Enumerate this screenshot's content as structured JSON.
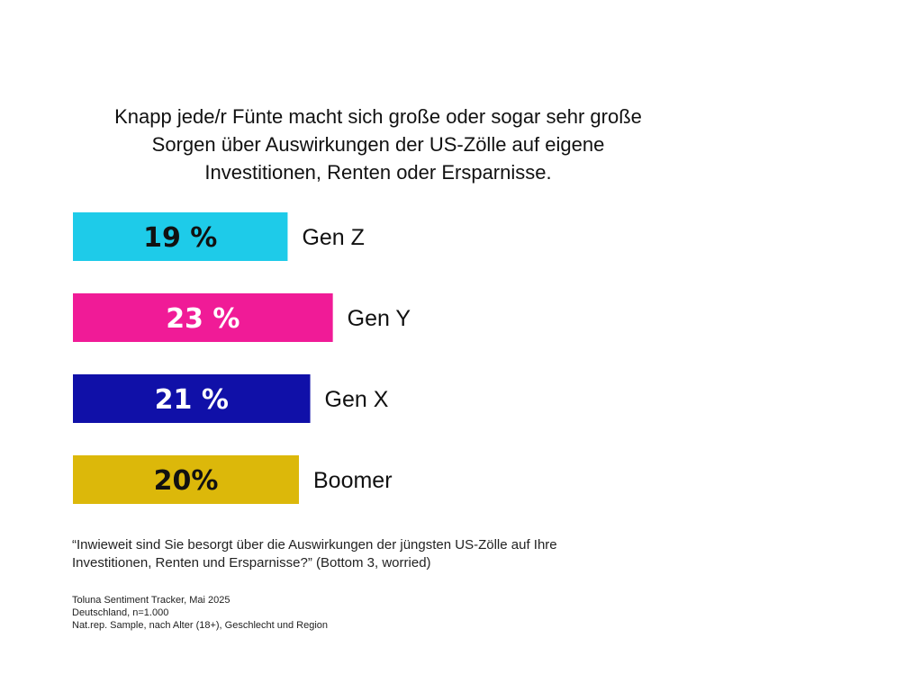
{
  "title_lines": [
    "Knapp jede/r Fünte macht sich große oder sogar sehr große",
    "Sorgen über Auswirkungen der US-Zölle auf eigene",
    "Investitionen, Renten oder Ersparnisse."
  ],
  "chart_data": {
    "type": "bar",
    "orientation": "horizontal",
    "categories": [
      "Gen Z",
      "Gen Y",
      "Gen X",
      "Boomer"
    ],
    "values": [
      19,
      23,
      21,
      20
    ],
    "value_labels": [
      "19 %",
      "23 %",
      "21 %",
      "20%"
    ],
    "colors": [
      "#1ecbe9",
      "#f01b97",
      "#1010a8",
      "#dcb80a"
    ],
    "label_colors": [
      "#111111",
      "#ffffff",
      "#ffffff",
      "#111111"
    ],
    "unit": "%"
  },
  "question_lines": [
    "“Inwieweit sind Sie besorgt über die Auswirkungen der jüngsten US-Zölle auf Ihre",
    "Investitionen, Renten und Ersparnisse?” (Bottom 3, worried)"
  ],
  "source_lines": [
    "Toluna Sentiment Tracker,  Mai 2025",
    "Deutschland, n=1.000",
    "Nat.rep. Sample, nach Alter (18+), Geschlecht und Region"
  ]
}
